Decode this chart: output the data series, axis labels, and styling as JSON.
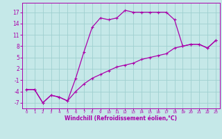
{
  "xlabel": "Windchill (Refroidissement éolien,°C)",
  "bg_color": "#c5e8e8",
  "grid_color": "#9fcfcf",
  "line_color": "#aa00aa",
  "ylim": [
    -8.5,
    19.5
  ],
  "xlim": [
    -0.5,
    23.5
  ],
  "yticks": [
    -7,
    -4,
    -1,
    2,
    5,
    8,
    11,
    14,
    17
  ],
  "xticks": [
    0,
    1,
    2,
    3,
    4,
    5,
    6,
    7,
    8,
    9,
    10,
    11,
    12,
    13,
    14,
    15,
    16,
    17,
    18,
    19,
    20,
    21,
    22,
    23
  ],
  "curve1_x": [
    0,
    1,
    2,
    3,
    4,
    5,
    6,
    7,
    8,
    9,
    10,
    11,
    12,
    13,
    14,
    15,
    16,
    17,
    18,
    19,
    20,
    21,
    22,
    23
  ],
  "curve1_y": [
    -3.5,
    -3.5,
    -7.0,
    -5.0,
    -5.5,
    -6.5,
    -0.5,
    6.5,
    13.0,
    15.5,
    15.0,
    15.5,
    17.5,
    17.0,
    17.0,
    17.0,
    17.0,
    17.0,
    15.0,
    8.0,
    8.5,
    8.5,
    7.5,
    9.5
  ],
  "curve2_x": [
    0,
    1,
    2,
    3,
    4,
    5,
    6,
    7,
    8,
    9,
    10,
    11,
    12,
    13,
    14,
    15,
    16,
    17,
    18,
    19,
    20,
    21,
    22,
    23
  ],
  "curve2_y": [
    -3.5,
    -3.5,
    -7.0,
    -5.0,
    -5.5,
    -6.5,
    -4.0,
    -2.0,
    -0.5,
    0.5,
    1.5,
    2.5,
    3.0,
    3.5,
    4.5,
    5.0,
    5.5,
    6.0,
    7.5,
    8.0,
    8.5,
    8.5,
    7.5,
    9.5
  ],
  "xtick_fontsize": 4.0,
  "ytick_fontsize": 5.5,
  "xlabel_fontsize": 5.5
}
